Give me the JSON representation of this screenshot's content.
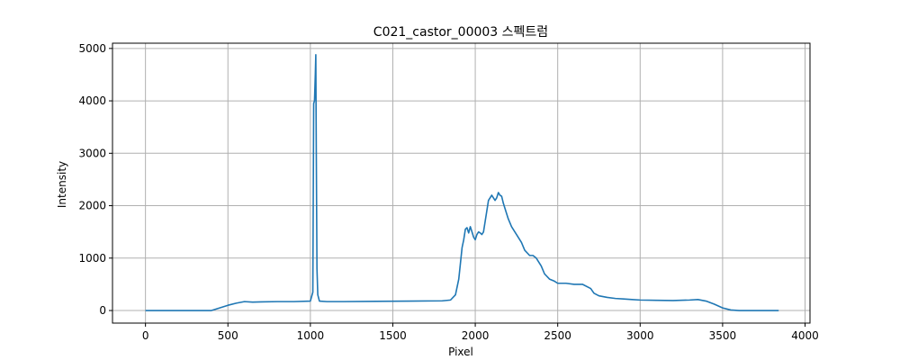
{
  "chart_data": {
    "type": "line",
    "title": "C021_castor_00003 스펙트럼",
    "xlabel": "Pixel",
    "ylabel": "Intensity",
    "xlim": [
      -200,
      4030
    ],
    "ylim": [
      -240,
      5100
    ],
    "x_ticks": [
      0,
      500,
      1000,
      1500,
      2000,
      2500,
      3000,
      3500,
      4000
    ],
    "y_ticks": [
      0,
      1000,
      2000,
      3000,
      4000,
      5000
    ],
    "grid": true,
    "line_color": "#1f77b4",
    "grid_color": "#b0b0b0",
    "series": [
      {
        "x": [
          0,
          400,
          450,
          500,
          550,
          600,
          650,
          700,
          800,
          900,
          1000,
          1015,
          1020,
          1025,
          1030,
          1033,
          1036,
          1040,
          1045,
          1055,
          1100,
          1200,
          1400,
          1600,
          1800,
          1850,
          1880,
          1900,
          1910,
          1920,
          1930,
          1940,
          1950,
          1960,
          1970,
          1980,
          1990,
          2000,
          2010,
          2020,
          2030,
          2040,
          2050,
          2060,
          2070,
          2080,
          2100,
          2110,
          2120,
          2130,
          2140,
          2150,
          2160,
          2170,
          2180,
          2200,
          2220,
          2250,
          2280,
          2300,
          2330,
          2350,
          2370,
          2400,
          2420,
          2450,
          2480,
          2500,
          2550,
          2600,
          2650,
          2700,
          2720,
          2750,
          2800,
          2850,
          2900,
          2950,
          3000,
          3100,
          3200,
          3300,
          3350,
          3400,
          3450,
          3500,
          3550,
          3600,
          3700,
          3840
        ],
        "y": [
          0,
          0,
          50,
          100,
          140,
          170,
          160,
          165,
          170,
          170,
          180,
          350,
          3950,
          4000,
          4500,
          4880,
          3000,
          800,
          300,
          180,
          170,
          170,
          175,
          180,
          185,
          200,
          300,
          600,
          900,
          1200,
          1350,
          1550,
          1580,
          1480,
          1600,
          1500,
          1400,
          1350,
          1450,
          1500,
          1480,
          1450,
          1500,
          1700,
          1900,
          2100,
          2200,
          2150,
          2100,
          2150,
          2250,
          2200,
          2180,
          2050,
          1950,
          1750,
          1600,
          1450,
          1300,
          1150,
          1050,
          1050,
          1000,
          850,
          700,
          600,
          560,
          520,
          520,
          500,
          500,
          420,
          330,
          280,
          250,
          230,
          220,
          210,
          200,
          195,
          190,
          200,
          210,
          180,
          120,
          50,
          10,
          0,
          0,
          0
        ]
      }
    ]
  }
}
